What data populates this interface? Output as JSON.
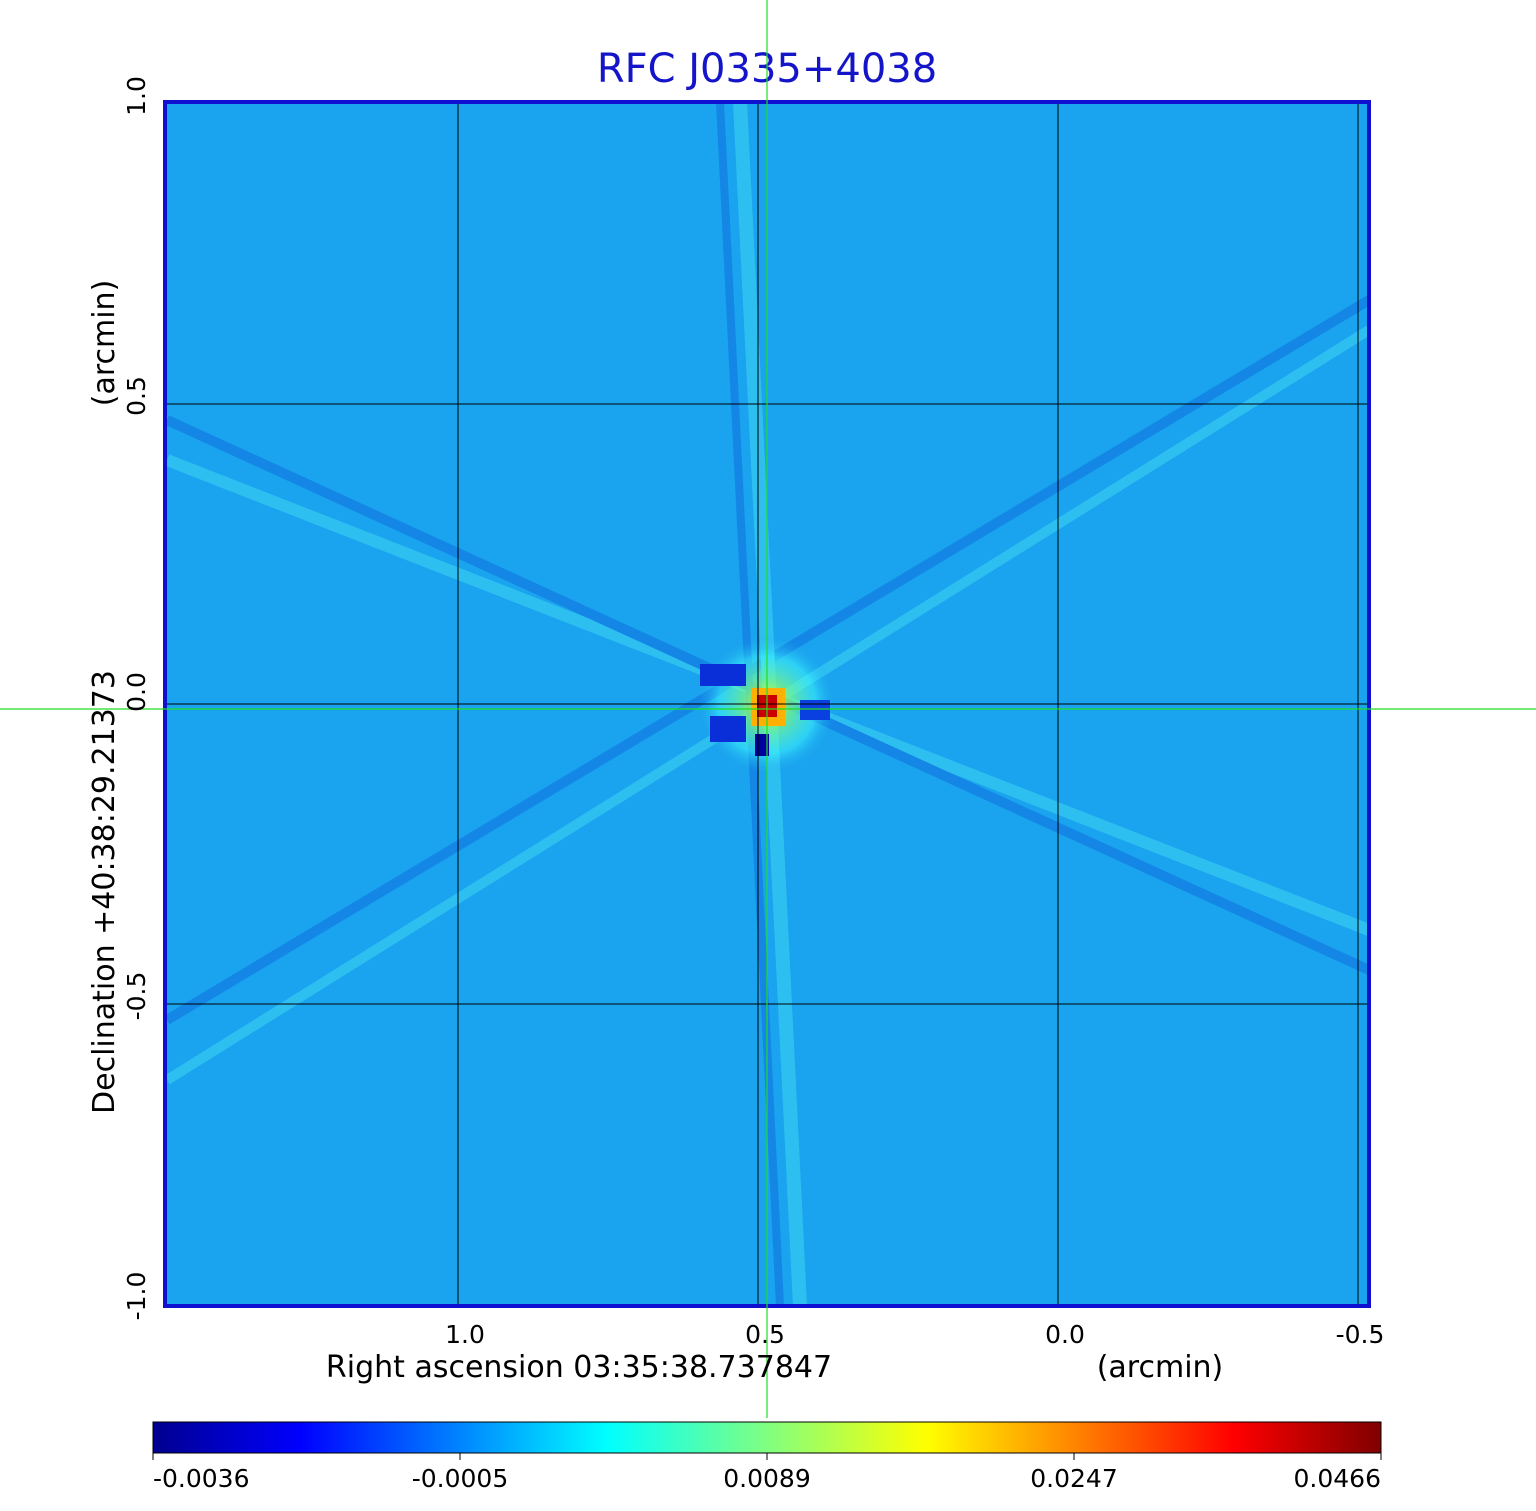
{
  "title": "RFC J0335+4038",
  "x_axis": {
    "label": "Right ascension  03:35:38.737847",
    "unit": "(arcmin)",
    "ticks": [
      "1.0",
      "0.5",
      "0.0",
      "-0.5"
    ]
  },
  "y_axis": {
    "label": "Declination  +40:38:29.21373",
    "unit": "(arcmin)",
    "ticks": [
      "1.0",
      "0.5",
      "0.0",
      "-0.5",
      "-1.0"
    ]
  },
  "colorbar": {
    "ticks": [
      "-0.0036",
      "-0.0005",
      "0.0089",
      "0.0247",
      "0.0466"
    ],
    "colors": [
      "#00008f",
      "#0000ff",
      "#00ffff",
      "#ffff00",
      "#ff0000",
      "#800000"
    ]
  },
  "image": {
    "background_color": "#1aa3ee",
    "peak_color": "#cc0000",
    "grid_color": "#000000",
    "frame_color": "#1010d0",
    "crosshair_color": "#22dd22"
  }
}
